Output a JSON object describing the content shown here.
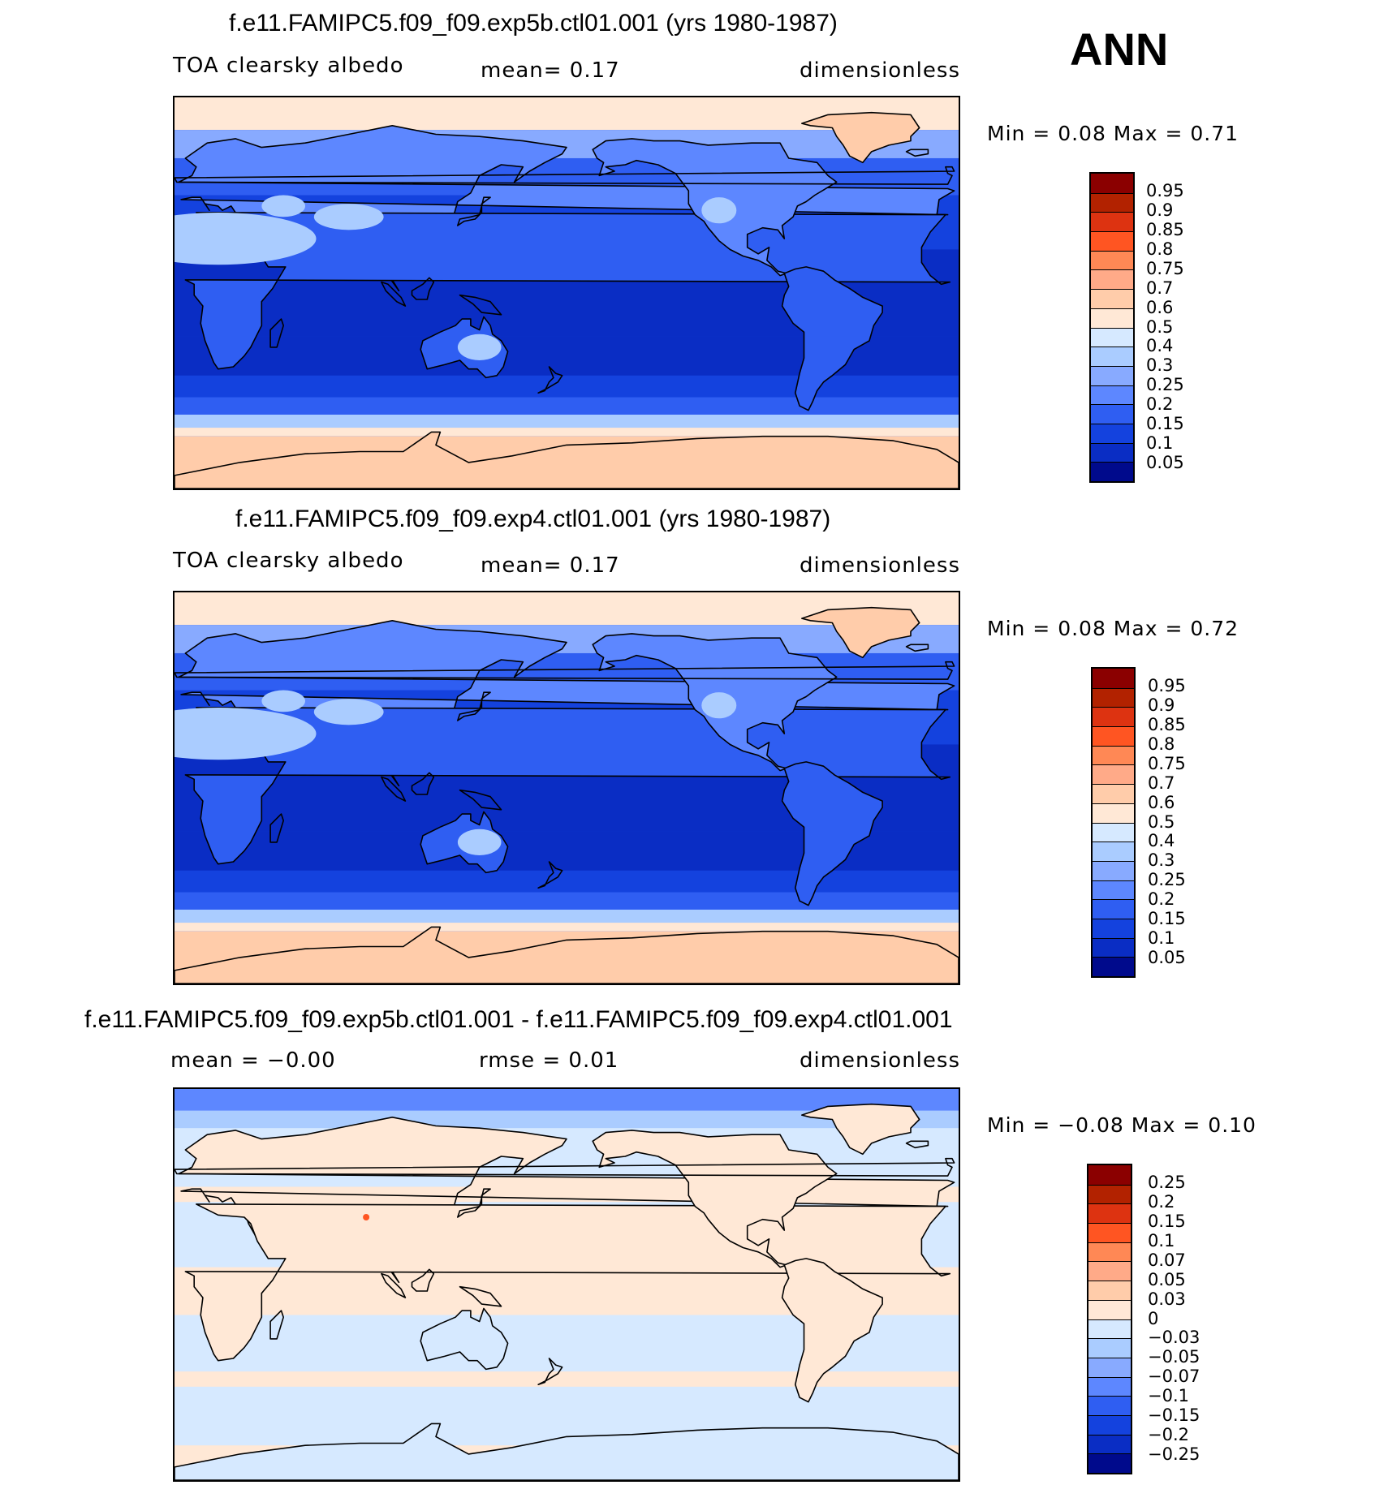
{
  "season": "ANN",
  "panels": [
    {
      "title": "f.e11.FAMIPC5.f09_f09.exp5b.ctl01.001 (yrs 1980-1987)",
      "left_label": "TOA  clearsky  albedo",
      "mid_label": "mean=    0.17",
      "right_label": "dimensionless",
      "minmax": "Min  =      0.08  Max  =      0.71",
      "map_kind": "abs",
      "colorbar": {
        "colors": [
          "#8b0000",
          "#b22200",
          "#dd3311",
          "#ff5522",
          "#ff8855",
          "#ffaa88",
          "#ffccaa",
          "#ffe8d6",
          "#d6e9ff",
          "#aaccff",
          "#88aaff",
          "#5d87ff",
          "#2f5ef2",
          "#1442de",
          "#0a2dc4",
          "#000a8c"
        ],
        "labels": [
          "0.95",
          "0.9",
          "0.85",
          "0.8",
          "0.75",
          "0.7",
          "0.6",
          "0.5",
          "0.4",
          "0.3",
          "0.25",
          "0.2",
          "0.15",
          "0.1",
          "0.05"
        ]
      }
    },
    {
      "title": "f.e11.FAMIPC5.f09_f09.exp4.ctl01.001 (yrs 1980-1987)",
      "left_label": "TOA  clearsky  albedo",
      "mid_label": "mean=    0.17",
      "right_label": "dimensionless",
      "minmax": "Min  =      0.08  Max  =      0.72",
      "map_kind": "abs",
      "colorbar": {
        "colors": [
          "#8b0000",
          "#b22200",
          "#dd3311",
          "#ff5522",
          "#ff8855",
          "#ffaa88",
          "#ffccaa",
          "#ffe8d6",
          "#d6e9ff",
          "#aaccff",
          "#88aaff",
          "#5d87ff",
          "#2f5ef2",
          "#1442de",
          "#0a2dc4",
          "#000a8c"
        ],
        "labels": [
          "0.95",
          "0.9",
          "0.85",
          "0.8",
          "0.75",
          "0.7",
          "0.6",
          "0.5",
          "0.4",
          "0.3",
          "0.25",
          "0.2",
          "0.15",
          "0.1",
          "0.05"
        ]
      }
    },
    {
      "title": "f.e11.FAMIPC5.f09_f09.exp5b.ctl01.001 - f.e11.FAMIPC5.f09_f09.exp4.ctl01.001",
      "left_label": "mean  =    −0.00",
      "mid_label": "rmse  =     0.01",
      "right_label": "dimensionless",
      "minmax": "Min  =    −0.08  Max  =     0.10",
      "map_kind": "diff",
      "colorbar": {
        "colors": [
          "#8b0000",
          "#b22200",
          "#dd3311",
          "#ff5522",
          "#ff8855",
          "#ffaa88",
          "#ffccaa",
          "#ffe8d6",
          "#d6e9ff",
          "#aaccff",
          "#88aaff",
          "#5d87ff",
          "#2f5ef2",
          "#1442de",
          "#0a2dc4",
          "#000a8c"
        ],
        "labels": [
          "0.25",
          "0.2",
          "0.15",
          "0.1",
          "0.07",
          "0.05",
          "0.03",
          "0",
          "−0.03",
          "−0.05",
          "−0.07",
          "−0.1",
          "−0.15",
          "−0.2",
          "−0.25"
        ]
      }
    }
  ]
}
